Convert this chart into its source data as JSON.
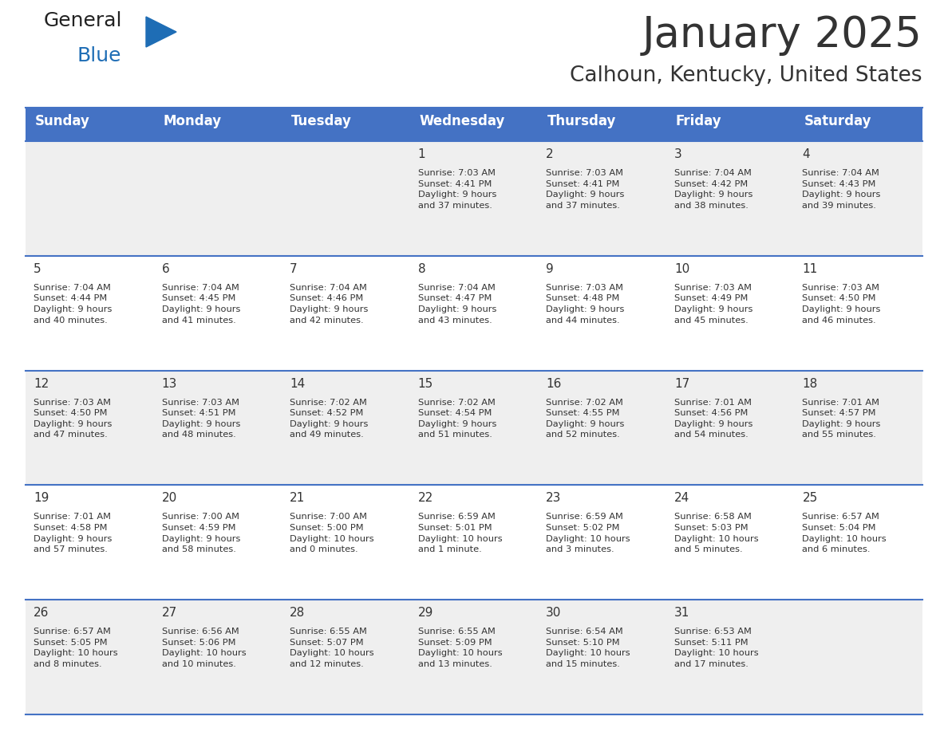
{
  "title": "January 2025",
  "subtitle": "Calhoun, Kentucky, United States",
  "header_bg": "#4472C4",
  "header_text_color": "#FFFFFF",
  "cell_bg_light": "#EFEFEF",
  "cell_bg_white": "#FFFFFF",
  "row_line_color": "#4472C4",
  "text_color": "#333333",
  "days_of_week": [
    "Sunday",
    "Monday",
    "Tuesday",
    "Wednesday",
    "Thursday",
    "Friday",
    "Saturday"
  ],
  "weeks": [
    [
      {
        "day": "",
        "info": ""
      },
      {
        "day": "",
        "info": ""
      },
      {
        "day": "",
        "info": ""
      },
      {
        "day": "1",
        "info": "Sunrise: 7:03 AM\nSunset: 4:41 PM\nDaylight: 9 hours\nand 37 minutes."
      },
      {
        "day": "2",
        "info": "Sunrise: 7:03 AM\nSunset: 4:41 PM\nDaylight: 9 hours\nand 37 minutes."
      },
      {
        "day": "3",
        "info": "Sunrise: 7:04 AM\nSunset: 4:42 PM\nDaylight: 9 hours\nand 38 minutes."
      },
      {
        "day": "4",
        "info": "Sunrise: 7:04 AM\nSunset: 4:43 PM\nDaylight: 9 hours\nand 39 minutes."
      }
    ],
    [
      {
        "day": "5",
        "info": "Sunrise: 7:04 AM\nSunset: 4:44 PM\nDaylight: 9 hours\nand 40 minutes."
      },
      {
        "day": "6",
        "info": "Sunrise: 7:04 AM\nSunset: 4:45 PM\nDaylight: 9 hours\nand 41 minutes."
      },
      {
        "day": "7",
        "info": "Sunrise: 7:04 AM\nSunset: 4:46 PM\nDaylight: 9 hours\nand 42 minutes."
      },
      {
        "day": "8",
        "info": "Sunrise: 7:04 AM\nSunset: 4:47 PM\nDaylight: 9 hours\nand 43 minutes."
      },
      {
        "day": "9",
        "info": "Sunrise: 7:03 AM\nSunset: 4:48 PM\nDaylight: 9 hours\nand 44 minutes."
      },
      {
        "day": "10",
        "info": "Sunrise: 7:03 AM\nSunset: 4:49 PM\nDaylight: 9 hours\nand 45 minutes."
      },
      {
        "day": "11",
        "info": "Sunrise: 7:03 AM\nSunset: 4:50 PM\nDaylight: 9 hours\nand 46 minutes."
      }
    ],
    [
      {
        "day": "12",
        "info": "Sunrise: 7:03 AM\nSunset: 4:50 PM\nDaylight: 9 hours\nand 47 minutes."
      },
      {
        "day": "13",
        "info": "Sunrise: 7:03 AM\nSunset: 4:51 PM\nDaylight: 9 hours\nand 48 minutes."
      },
      {
        "day": "14",
        "info": "Sunrise: 7:02 AM\nSunset: 4:52 PM\nDaylight: 9 hours\nand 49 minutes."
      },
      {
        "day": "15",
        "info": "Sunrise: 7:02 AM\nSunset: 4:54 PM\nDaylight: 9 hours\nand 51 minutes."
      },
      {
        "day": "16",
        "info": "Sunrise: 7:02 AM\nSunset: 4:55 PM\nDaylight: 9 hours\nand 52 minutes."
      },
      {
        "day": "17",
        "info": "Sunrise: 7:01 AM\nSunset: 4:56 PM\nDaylight: 9 hours\nand 54 minutes."
      },
      {
        "day": "18",
        "info": "Sunrise: 7:01 AM\nSunset: 4:57 PM\nDaylight: 9 hours\nand 55 minutes."
      }
    ],
    [
      {
        "day": "19",
        "info": "Sunrise: 7:01 AM\nSunset: 4:58 PM\nDaylight: 9 hours\nand 57 minutes."
      },
      {
        "day": "20",
        "info": "Sunrise: 7:00 AM\nSunset: 4:59 PM\nDaylight: 9 hours\nand 58 minutes."
      },
      {
        "day": "21",
        "info": "Sunrise: 7:00 AM\nSunset: 5:00 PM\nDaylight: 10 hours\nand 0 minutes."
      },
      {
        "day": "22",
        "info": "Sunrise: 6:59 AM\nSunset: 5:01 PM\nDaylight: 10 hours\nand 1 minute."
      },
      {
        "day": "23",
        "info": "Sunrise: 6:59 AM\nSunset: 5:02 PM\nDaylight: 10 hours\nand 3 minutes."
      },
      {
        "day": "24",
        "info": "Sunrise: 6:58 AM\nSunset: 5:03 PM\nDaylight: 10 hours\nand 5 minutes."
      },
      {
        "day": "25",
        "info": "Sunrise: 6:57 AM\nSunset: 5:04 PM\nDaylight: 10 hours\nand 6 minutes."
      }
    ],
    [
      {
        "day": "26",
        "info": "Sunrise: 6:57 AM\nSunset: 5:05 PM\nDaylight: 10 hours\nand 8 minutes."
      },
      {
        "day": "27",
        "info": "Sunrise: 6:56 AM\nSunset: 5:06 PM\nDaylight: 10 hours\nand 10 minutes."
      },
      {
        "day": "28",
        "info": "Sunrise: 6:55 AM\nSunset: 5:07 PM\nDaylight: 10 hours\nand 12 minutes."
      },
      {
        "day": "29",
        "info": "Sunrise: 6:55 AM\nSunset: 5:09 PM\nDaylight: 10 hours\nand 13 minutes."
      },
      {
        "day": "30",
        "info": "Sunrise: 6:54 AM\nSunset: 5:10 PM\nDaylight: 10 hours\nand 15 minutes."
      },
      {
        "day": "31",
        "info": "Sunrise: 6:53 AM\nSunset: 5:11 PM\nDaylight: 10 hours\nand 17 minutes."
      },
      {
        "day": "",
        "info": ""
      }
    ]
  ],
  "logo_general_color": "#222222",
  "logo_blue_color": "#1E6DB5",
  "logo_triangle_color": "#1E6DB5",
  "fig_width": 11.88,
  "fig_height": 9.18,
  "dpi": 100
}
